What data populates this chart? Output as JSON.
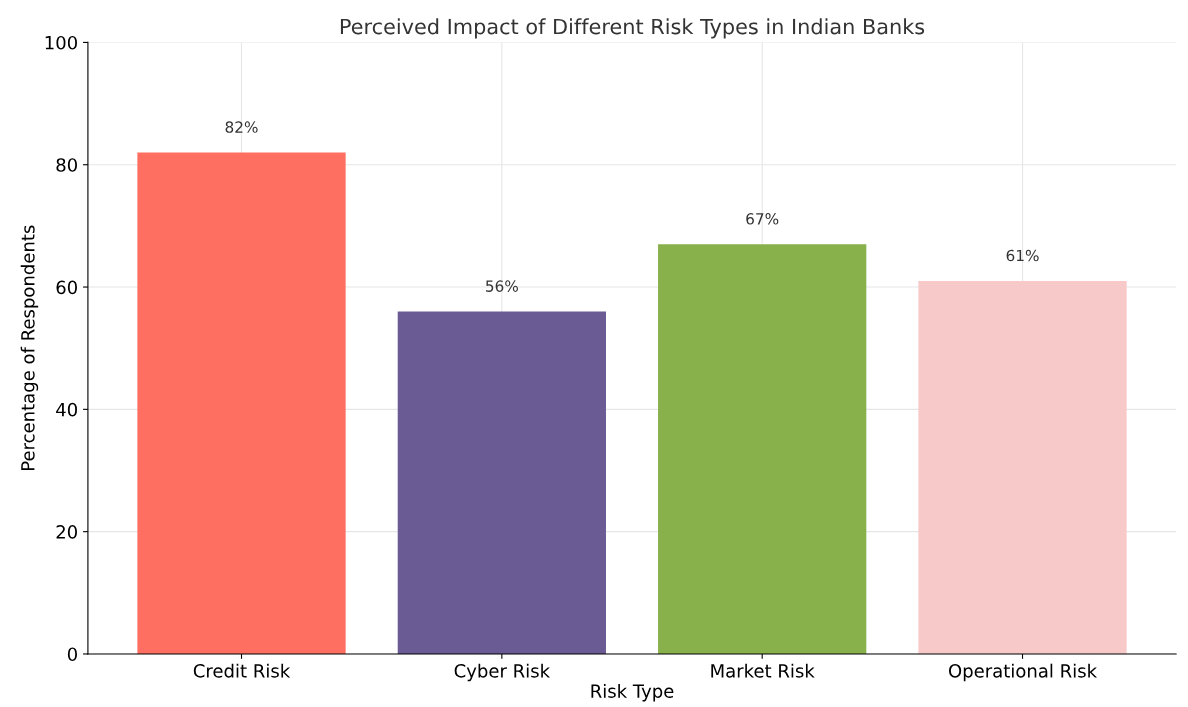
{
  "chart_data": {
    "type": "bar",
    "title": "Perceived Impact of Different Risk Types in Indian Banks",
    "xlabel": "Risk Type",
    "ylabel": "Percentage of Respondents",
    "categories": [
      "Credit Risk",
      "Cyber Risk",
      "Market Risk",
      "Operational Risk"
    ],
    "values": [
      82,
      56,
      67,
      61
    ],
    "colors": [
      "#ff6f61",
      "#6b5b95",
      "#88b04b",
      "#f7cac9"
    ],
    "value_labels": [
      "82%",
      "56%",
      "67%",
      "61%"
    ],
    "ylim": [
      0,
      100
    ],
    "yticks": [
      0,
      20,
      40,
      60,
      80,
      100
    ],
    "grid": true
  }
}
